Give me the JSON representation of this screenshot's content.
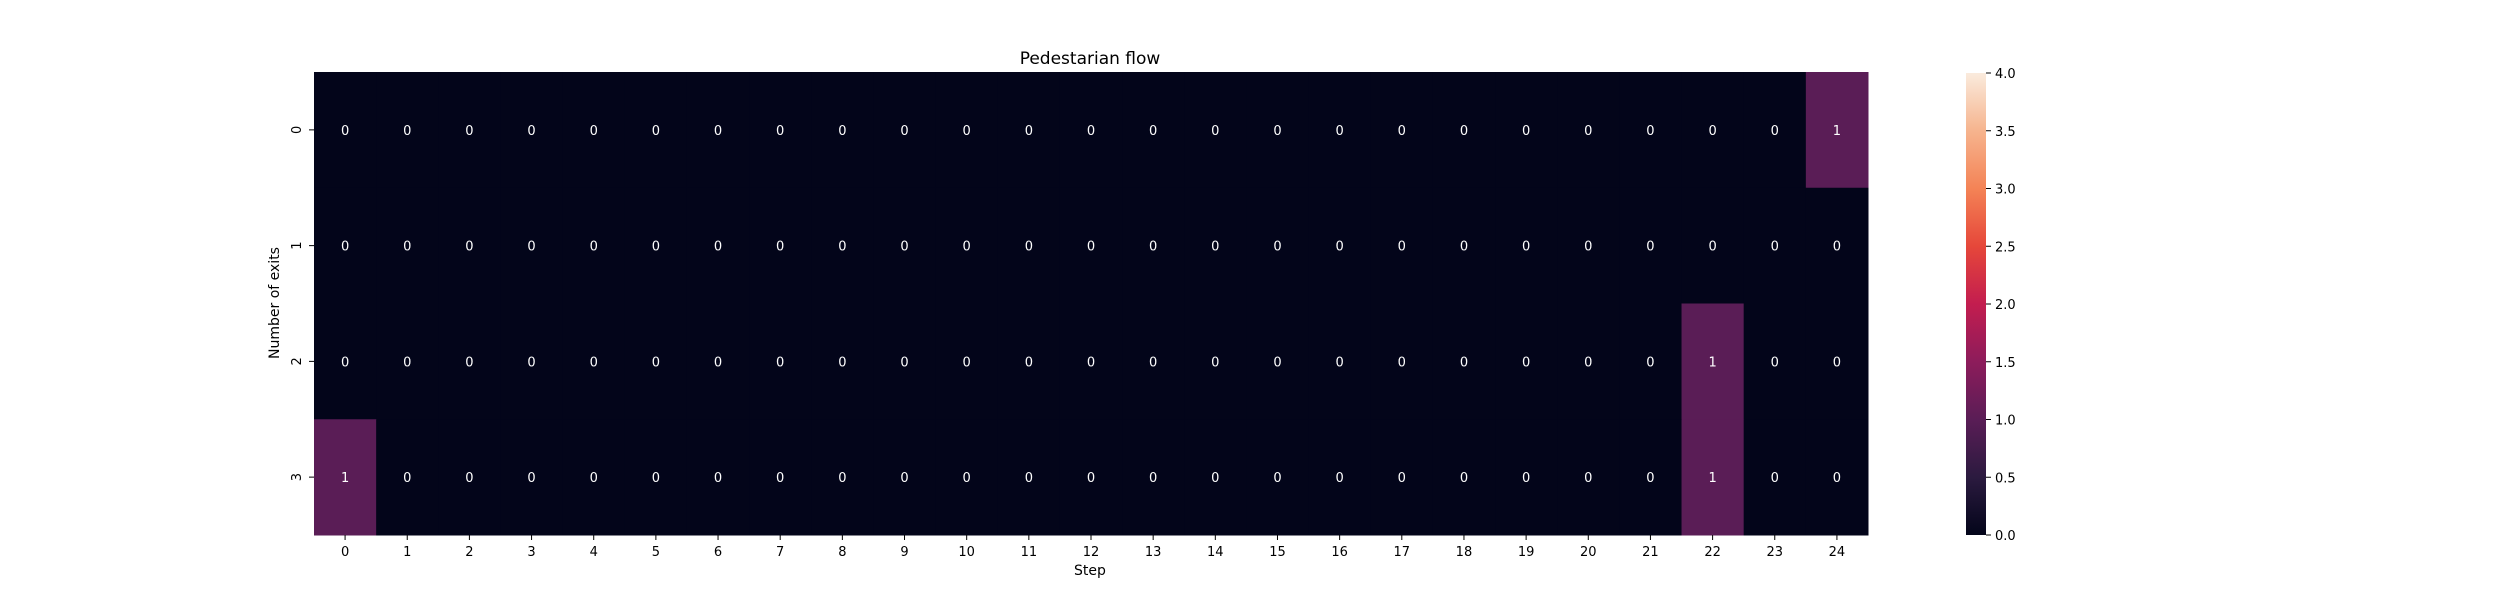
{
  "chart_data": {
    "type": "heatmap",
    "title": "Pedestarian flow",
    "xlabel": "Step",
    "ylabel": "Number of exits",
    "x_categories": [
      "0",
      "1",
      "2",
      "3",
      "4",
      "5",
      "6",
      "7",
      "8",
      "9",
      "10",
      "11",
      "12",
      "13",
      "14",
      "15",
      "16",
      "17",
      "18",
      "19",
      "20",
      "21",
      "22",
      "23",
      "24"
    ],
    "y_categories": [
      "0",
      "1",
      "2",
      "3"
    ],
    "values": [
      [
        0,
        0,
        0,
        0,
        0,
        0,
        0,
        0,
        0,
        0,
        0,
        0,
        0,
        0,
        0,
        0,
        0,
        0,
        0,
        0,
        0,
        0,
        0,
        0,
        1
      ],
      [
        0,
        0,
        0,
        0,
        0,
        0,
        0,
        0,
        0,
        0,
        0,
        0,
        0,
        0,
        0,
        0,
        0,
        0,
        0,
        0,
        0,
        0,
        0,
        0,
        0
      ],
      [
        0,
        0,
        0,
        0,
        0,
        0,
        0,
        0,
        0,
        0,
        0,
        0,
        0,
        0,
        0,
        0,
        0,
        0,
        0,
        0,
        0,
        0,
        1,
        0,
        0
      ],
      [
        1,
        0,
        0,
        0,
        0,
        0,
        0,
        0,
        0,
        0,
        0,
        0,
        0,
        0,
        0,
        0,
        0,
        0,
        0,
        0,
        0,
        0,
        1,
        0,
        0
      ]
    ],
    "colorbar": {
      "range": [
        0,
        4
      ],
      "ticks": [
        "0.0",
        "0.5",
        "1.0",
        "1.5",
        "2.0",
        "2.5",
        "3.0",
        "3.5",
        "4.0"
      ],
      "colormap": "rocket",
      "colormap_stops": [
        "#03051a",
        "#2b1a3f",
        "#5a1d56",
        "#8d1c5b",
        "#c31d4f",
        "#e6473a",
        "#f48356",
        "#f6b48e",
        "#faebdd"
      ]
    },
    "annotate": true,
    "grid": false
  }
}
